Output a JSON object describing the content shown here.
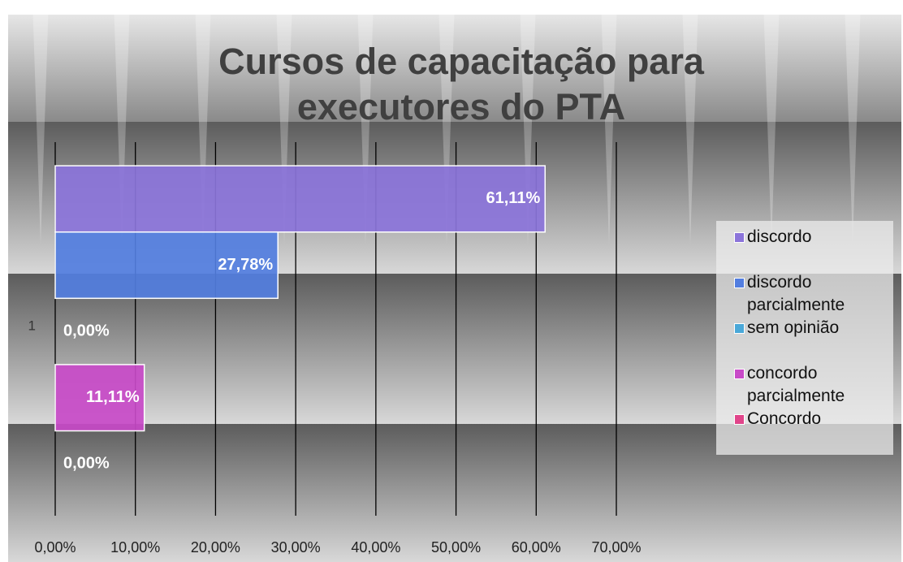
{
  "chart_data": {
    "type": "bar",
    "orientation": "horizontal",
    "title": "Cursos de capacitação para executores do PTA",
    "categories": [
      "1"
    ],
    "series": [
      {
        "name": "discordo",
        "color": "#8b74da",
        "values": [
          61.11
        ],
        "value_labels": [
          "61,11%"
        ]
      },
      {
        "name": "discordo parcialmente",
        "color": "#527ee0",
        "values": [
          27.78
        ],
        "value_labels": [
          "27,78%"
        ]
      },
      {
        "name": "sem opinião",
        "color": "#4aa8d8",
        "values": [
          0
        ],
        "value_labels": [
          "0,00%"
        ]
      },
      {
        "name": "concordo parcialmente",
        "color": "#c84ac8",
        "values": [
          11.11
        ],
        "value_labels": [
          "11,11%"
        ]
      },
      {
        "name": "Concordo",
        "color": "#e0458a",
        "values": [
          0
        ],
        "value_labels": [
          "0,00%"
        ]
      }
    ],
    "xlim": [
      0,
      70
    ],
    "xticks": [
      {
        "value": 0,
        "label": "0,00%"
      },
      {
        "value": 10,
        "label": "10,00%"
      },
      {
        "value": 20,
        "label": "20,00%"
      },
      {
        "value": 30,
        "label": "30,00%"
      },
      {
        "value": 40,
        "label": "40,00%"
      },
      {
        "value": 50,
        "label": "50,00%"
      },
      {
        "value": 60,
        "label": "60,00%"
      },
      {
        "value": 70,
        "label": "70,00%"
      }
    ],
    "grid": true,
    "legend": "right"
  }
}
